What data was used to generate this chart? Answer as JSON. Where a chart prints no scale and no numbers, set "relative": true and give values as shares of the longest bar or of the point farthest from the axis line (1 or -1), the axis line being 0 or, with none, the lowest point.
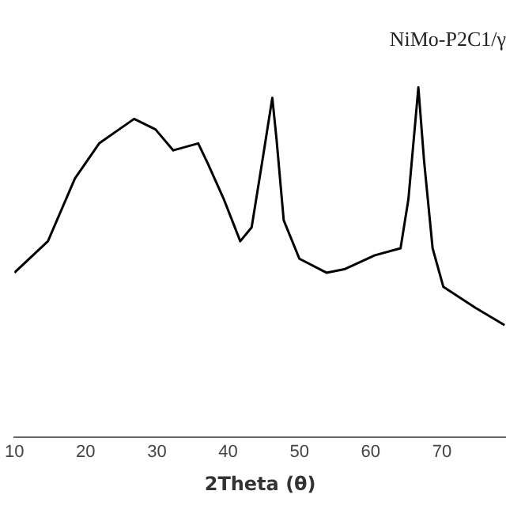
{
  "chart_data": {
    "type": "line",
    "title": "NiMo-P2C1/γ",
    "xlabel": "2Theta (θ)",
    "relative": true,
    "xlim": [
      10,
      79
    ],
    "xticks": [
      10,
      20,
      30,
      40,
      50,
      60,
      70
    ],
    "grid": false,
    "legend": false,
    "marker": "none",
    "series": [
      {
        "color": "#000000",
        "x": [
          10,
          14.7,
          18.5,
          21.9,
          26.8,
          29.8,
          32.3,
          35.8,
          37.2,
          39.4,
          41.7,
          43.3,
          44.8,
          46.2,
          46.8,
          47.8,
          50,
          53.8,
          56.3,
          60.6,
          64.2,
          65.3,
          66.7,
          67.5,
          68.7,
          70.2,
          74.7,
          78.8
        ],
        "values": [
          0.47,
          0.56,
          0.74,
          0.84,
          0.91,
          0.88,
          0.82,
          0.84,
          0.78,
          0.68,
          0.56,
          0.6,
          0.79,
          0.97,
          0.85,
          0.62,
          0.51,
          0.47,
          0.48,
          0.52,
          0.54,
          0.68,
          1,
          0.79,
          0.54,
          0.43,
          0.37,
          0.32
        ]
      }
    ]
  }
}
